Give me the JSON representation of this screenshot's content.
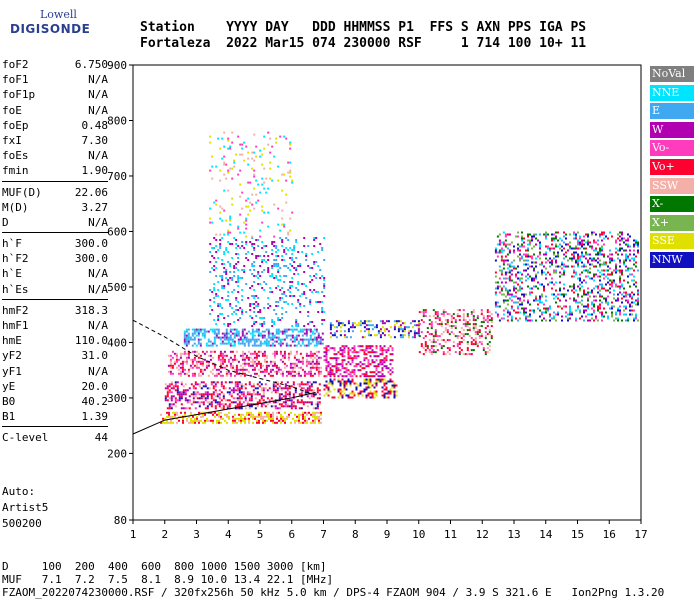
{
  "logo": {
    "line1": "Lowell",
    "line2": "DIGISONDE"
  },
  "header": {
    "line1": "Station    YYYY DAY   DDD HHMMSS P1  FFS S AXN PPS IGA PS",
    "line2": "Fortaleza  2022 Mar15 074 230000 RSF     1 714 100 10+ 11"
  },
  "params": [
    {
      "k": "foF2",
      "v": "6.750"
    },
    {
      "k": "foF1",
      "v": "N/A"
    },
    {
      "k": "foF1p",
      "v": "N/A"
    },
    {
      "k": "foE",
      "v": "N/A"
    },
    {
      "k": "foEp",
      "v": "0.48"
    },
    {
      "k": "fxI",
      "v": "7.30"
    },
    {
      "k": "foEs",
      "v": "N/A"
    },
    {
      "k": "fmin",
      "v": "1.90"
    },
    {
      "sep": true
    },
    {
      "k": "MUF(D)",
      "v": "22.06"
    },
    {
      "k": "M(D)",
      "v": "3.27"
    },
    {
      "k": "D",
      "v": "N/A"
    },
    {
      "sep": true
    },
    {
      "k": "h`F",
      "v": "300.0"
    },
    {
      "k": "h`F2",
      "v": "300.0"
    },
    {
      "k": "h`E",
      "v": "N/A"
    },
    {
      "k": "h`Es",
      "v": "N/A"
    },
    {
      "sep": true
    },
    {
      "k": "hmF2",
      "v": "318.3"
    },
    {
      "k": "hmF1",
      "v": "N/A"
    },
    {
      "k": "hmE",
      "v": "110.0"
    },
    {
      "k": "yF2",
      "v": "31.0"
    },
    {
      "k": "yF1",
      "v": "N/A"
    },
    {
      "k": "yE",
      "v": "20.0"
    },
    {
      "k": "B0",
      "v": "40.2"
    },
    {
      "k": "B1",
      "v": "1.39"
    },
    {
      "sep": true
    },
    {
      "k": "C-level",
      "v": "44"
    }
  ],
  "auto": [
    "Auto:",
    "Artist5",
    "500200"
  ],
  "footer": {
    "line1": "D     100  200  400  600  800 1000 1500 3000 [km]",
    "line2": "MUF   7.1  7.2  7.5  8.1  8.9 10.0 13.4 22.1 [MHz]",
    "line3": "FZAOM_2022074230000.RSF / 320fx256h 50 kHz 5.0 km / DPS-4 FZAOM 904 / 3.9 S 321.6 E   Ion2Png 1.3.20"
  },
  "chart_data": {
    "type": "scatter",
    "xlim": [
      1,
      17
    ],
    "ylim": [
      80,
      900
    ],
    "xticks": [
      1,
      2,
      3,
      4,
      5,
      6,
      7,
      8,
      9,
      10,
      11,
      12,
      13,
      14,
      15,
      16,
      17
    ],
    "yticks": [
      80,
      200,
      300,
      400,
      500,
      600,
      700,
      800,
      900
    ],
    "legend": [
      {
        "name": "NoVal",
        "color": "#7f7f7f"
      },
      {
        "name": "NNE",
        "color": "#00e5ff"
      },
      {
        "name": "E",
        "color": "#40a8f0"
      },
      {
        "name": "W",
        "color": "#b000b0"
      },
      {
        "name": "Vo-",
        "color": "#ff3cbe"
      },
      {
        "name": "Vo+",
        "color": "#ff0030"
      },
      {
        "name": "SSW",
        "color": "#f4b0a8"
      },
      {
        "name": "X-",
        "color": "#007800"
      },
      {
        "name": "X+",
        "color": "#78b450"
      },
      {
        "name": "SSE",
        "color": "#e0e000"
      },
      {
        "name": "NNW",
        "color": "#1010c0"
      }
    ],
    "clusters": [
      {
        "x": [
          1.85,
          6.9
        ],
        "y": [
          255,
          275
        ],
        "colors": [
          9,
          9,
          6,
          5
        ],
        "density": 0.55
      },
      {
        "x": [
          2.0,
          6.9
        ],
        "y": [
          280,
          330
        ],
        "colors": [
          5,
          4,
          6,
          3,
          5,
          10
        ],
        "density": 0.45
      },
      {
        "x": [
          2.1,
          6.9
        ],
        "y": [
          340,
          385
        ],
        "colors": [
          3,
          5,
          4,
          6
        ],
        "density": 0.45
      },
      {
        "x": [
          2.6,
          7.0
        ],
        "y": [
          395,
          425
        ],
        "colors": [
          2,
          2,
          1,
          3
        ],
        "density": 0.55
      },
      {
        "x": [
          3.4,
          7.0
        ],
        "y": [
          430,
          590
        ],
        "colors": [
          2,
          1,
          3
        ],
        "density": 0.18
      },
      {
        "x": [
          3.4,
          6.0
        ],
        "y": [
          590,
          780
        ],
        "colors": [
          6,
          9,
          4,
          1
        ],
        "density": 0.08
      },
      {
        "x": [
          7.0,
          9.3
        ],
        "y": [
          300,
          335
        ],
        "colors": [
          9,
          5,
          10
        ],
        "density": 0.45
      },
      {
        "x": [
          7.0,
          9.2
        ],
        "y": [
          340,
          395
        ],
        "colors": [
          5,
          4,
          3
        ],
        "density": 0.45
      },
      {
        "x": [
          7.2,
          10.0
        ],
        "y": [
          410,
          440
        ],
        "colors": [
          2,
          9,
          10,
          3
        ],
        "density": 0.35
      },
      {
        "x": [
          10.0,
          12.3
        ],
        "y": [
          380,
          460
        ],
        "colors": [
          5,
          4,
          7,
          6
        ],
        "density": 0.35
      },
      {
        "x": [
          12.4,
          16.9
        ],
        "y": [
          440,
          600
        ],
        "colors": [
          7,
          2,
          3,
          10,
          1,
          4,
          8,
          5
        ],
        "density": 0.3
      }
    ],
    "curves": [
      {
        "name": "virtual-height",
        "x": [
          1.0,
          2.0,
          3.0,
          4.0,
          5.0,
          6.0,
          6.75
        ],
        "y": [
          235,
          260,
          270,
          280,
          290,
          300,
          310
        ]
      },
      {
        "name": "upper-trace",
        "x": [
          1.0,
          2.0,
          3.0,
          4.0,
          5.0,
          6.0,
          6.75
        ],
        "y": [
          440,
          410,
          375,
          350,
          335,
          320,
          305
        ]
      }
    ]
  }
}
